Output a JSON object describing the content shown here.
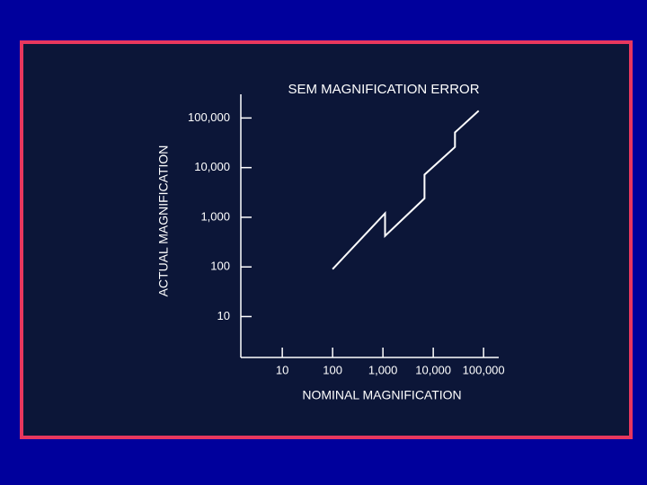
{
  "chart_data": {
    "type": "line",
    "title": "SEM MAGNIFICATION ERROR",
    "x_label": "NOMINAL MAGNIFICATION",
    "y_label": "ACTUAL MAGNIFICATION",
    "xscale": "log",
    "yscale": "log",
    "xlim": [
      1.5,
      200000
    ],
    "ylim": [
      1.5,
      300000
    ],
    "xticks": [
      10,
      100,
      {
        "value": 1000,
        "label": "1,000"
      },
      {
        "value": 10000,
        "label": "10,000"
      },
      {
        "value": 100000,
        "label": "100,000"
      }
    ],
    "yticks": [
      10,
      100,
      {
        "value": 1000,
        "label": "1,000"
      },
      {
        "value": 10000,
        "label": "10,000"
      },
      {
        "value": 100000,
        "label": "100,000"
      }
    ],
    "color": "#ffffff",
    "x": [
      100,
      1100,
      1100,
      6700,
      6700,
      27000,
      27000,
      80000
    ],
    "values": [
      90,
      1200,
      420,
      2400,
      7200,
      26000,
      51000,
      140000
    ]
  }
}
